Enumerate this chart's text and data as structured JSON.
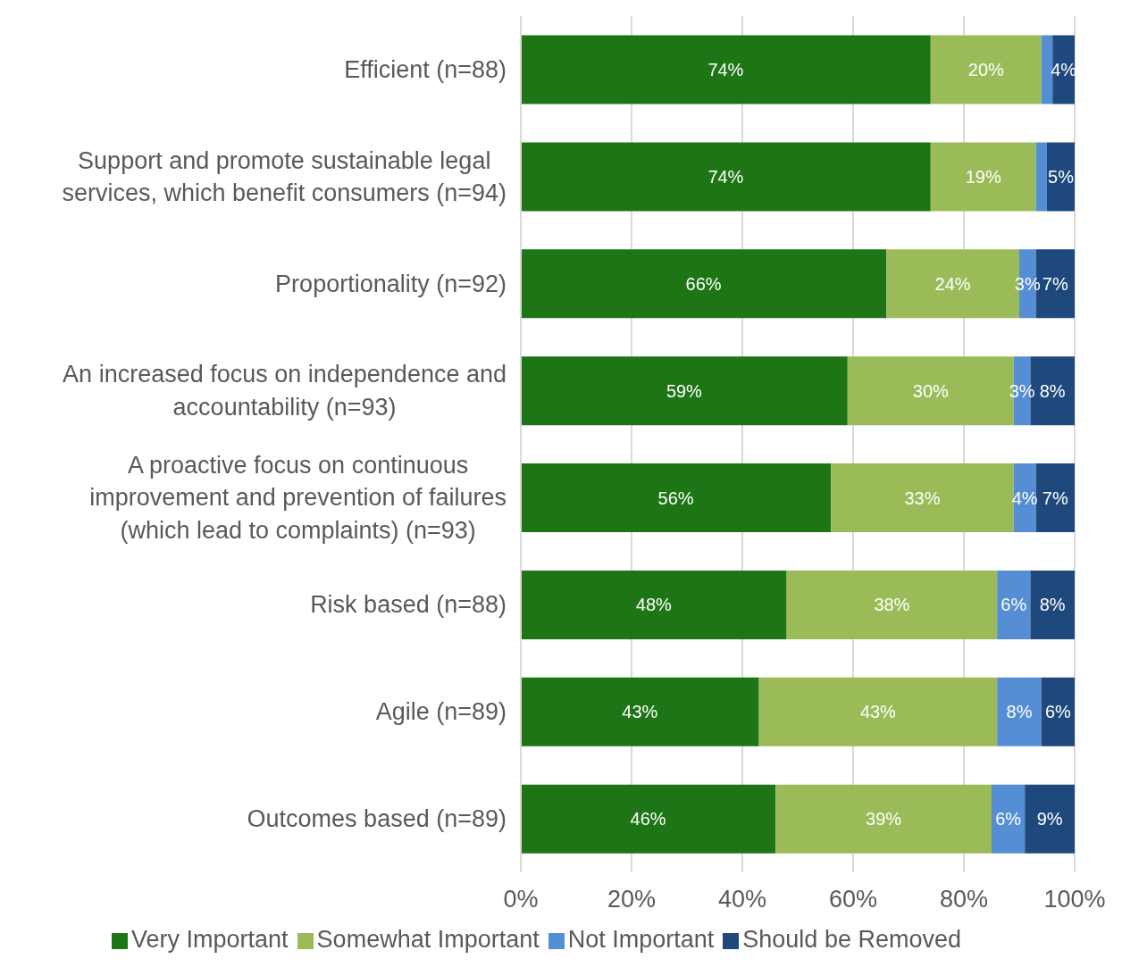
{
  "chart_data": {
    "type": "bar",
    "orientation": "horizontal",
    "stacked": true,
    "categories": [
      "Efficient (n=88)",
      "Support and promote sustainable legal services, which benefit consumers (n=94)",
      "Proportionality (n=92)",
      "An increased focus on independence and accountability (n=93)",
      "A proactive focus on continuous improvement and prevention of failures (which lead to complaints) (n=93)",
      "Risk based (n=88)",
      "Agile (n=89)",
      "Outcomes based (n=89)"
    ],
    "series": [
      {
        "name": "Very Important",
        "color": "#1e7516",
        "values": [
          74,
          74,
          66,
          59,
          56,
          48,
          43,
          46
        ],
        "value_labels": [
          "74%",
          "74%",
          "66%",
          "59%",
          "56%",
          "48%",
          "43%",
          "46%"
        ]
      },
      {
        "name": "Somewhat Important",
        "color": "#9bbb59",
        "values": [
          20,
          19,
          24,
          30,
          33,
          38,
          43,
          39
        ],
        "value_labels": [
          "20%",
          "19%",
          "24%",
          "30%",
          "33%",
          "38%",
          "43%",
          "39%"
        ]
      },
      {
        "name": "Not Important",
        "color": "#558ed5",
        "values": [
          2,
          2,
          3,
          3,
          4,
          6,
          8,
          6
        ],
        "value_labels": [
          null,
          null,
          "3%",
          "3%",
          "4%",
          "6%",
          "8%",
          "6%"
        ]
      },
      {
        "name": "Should be Removed",
        "color": "#1f497d",
        "values": [
          4,
          5,
          7,
          8,
          7,
          8,
          6,
          9
        ],
        "value_labels": [
          "4%",
          "5%",
          "7%",
          "8%",
          "7%",
          "8%",
          "6%",
          "9%"
        ]
      }
    ],
    "xlim": [
      0,
      100
    ],
    "xticks": [
      {
        "value": 0,
        "label": "0%"
      },
      {
        "value": 20,
        "label": "20%"
      },
      {
        "value": 40,
        "label": "40%"
      },
      {
        "value": 60,
        "label": "60%"
      },
      {
        "value": 80,
        "label": "80%"
      },
      {
        "value": 100,
        "label": "100%"
      }
    ],
    "grid": "x",
    "legend": "bottom"
  }
}
